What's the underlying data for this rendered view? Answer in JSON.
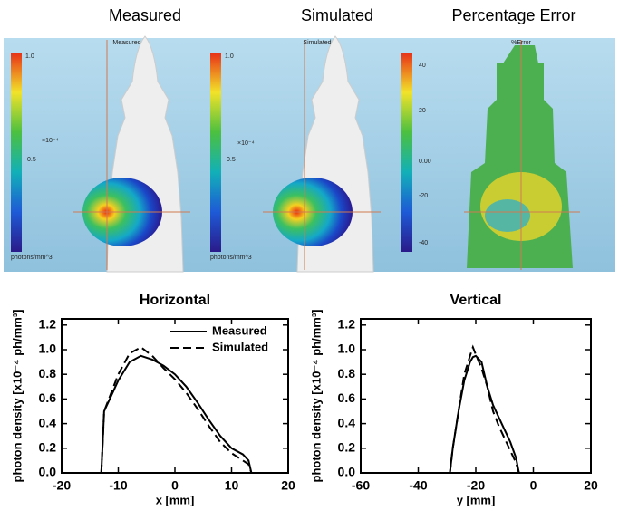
{
  "panels": {
    "titles": [
      "Measured",
      "Simulated",
      "Percentage Error"
    ],
    "image_labels": [
      "Measured",
      "Simulated",
      "%Error"
    ],
    "colorbar_top": "1.0",
    "colorbar_mid": "0.5",
    "colorbar_scale": "×10⁻⁴",
    "colorbar_unit": "photons/mm^3",
    "error_ticks": [
      "40",
      "20",
      "0.00",
      "-20",
      "-40"
    ]
  },
  "chart_data": [
    {
      "type": "line",
      "title": "Horizontal",
      "xlabel": "x [mm]",
      "ylabel": "photon density [x10⁻⁴ ph/mm³]",
      "x": [
        -13,
        -12.5,
        -10,
        -8,
        -6,
        -4,
        -2,
        0,
        2,
        4,
        6,
        8,
        10,
        12,
        13,
        13.5
      ],
      "series": [
        {
          "name": "Measured",
          "color": "#000000",
          "line_style": "solid",
          "values": [
            0,
            0.5,
            0.75,
            0.9,
            0.95,
            0.92,
            0.87,
            0.8,
            0.7,
            0.57,
            0.43,
            0.3,
            0.2,
            0.15,
            0.1,
            0
          ]
        },
        {
          "name": "Simulated",
          "color": "#000000",
          "line_style": "dashed",
          "values": [
            0,
            0.5,
            0.8,
            0.97,
            1.02,
            0.95,
            0.85,
            0.76,
            0.65,
            0.52,
            0.38,
            0.25,
            0.16,
            0.1,
            0.07,
            0
          ]
        }
      ],
      "xlim": [
        -20,
        20
      ],
      "xticks": [
        -20,
        -10,
        0,
        10,
        20
      ],
      "ylim": [
        0,
        1.25
      ],
      "yticks": [
        {
          "value": 0,
          "label": "0.0"
        },
        0.2,
        0.4,
        0.6,
        0.8,
        {
          "value": 1,
          "label": "1.0"
        },
        1.2
      ],
      "legend": "upper right"
    },
    {
      "type": "line",
      "title": "Vertical",
      "xlabel": "y [mm]",
      "ylabel": "photon density [x10⁻⁴ ph/mm³]",
      "x": [
        -29,
        -28,
        -26,
        -24,
        -22,
        -21,
        -20,
        -18,
        -16,
        -14,
        -12,
        -10,
        -8,
        -6,
        -5
      ],
      "series": [
        {
          "color": "#000000",
          "line_style": "solid",
          "values": [
            0,
            0.2,
            0.5,
            0.75,
            0.9,
            0.94,
            0.95,
            0.9,
            0.7,
            0.55,
            0.45,
            0.35,
            0.25,
            0.12,
            0
          ]
        },
        {
          "color": "#000000",
          "line_style": "dashed",
          "values": [
            0,
            0.2,
            0.5,
            0.8,
            0.95,
            1.02,
            0.96,
            0.85,
            0.7,
            0.5,
            0.38,
            0.28,
            0.18,
            0.08,
            0
          ]
        }
      ],
      "xlim": [
        -60,
        20
      ],
      "xticks": [
        -60,
        -40,
        -20,
        0,
        20
      ],
      "ylim": [
        0,
        1.25
      ],
      "yticks": [
        {
          "value": 0,
          "label": "0.0"
        },
        0.2,
        0.4,
        0.6,
        0.8,
        {
          "value": 1,
          "label": "1.0"
        },
        1.2
      ]
    }
  ]
}
